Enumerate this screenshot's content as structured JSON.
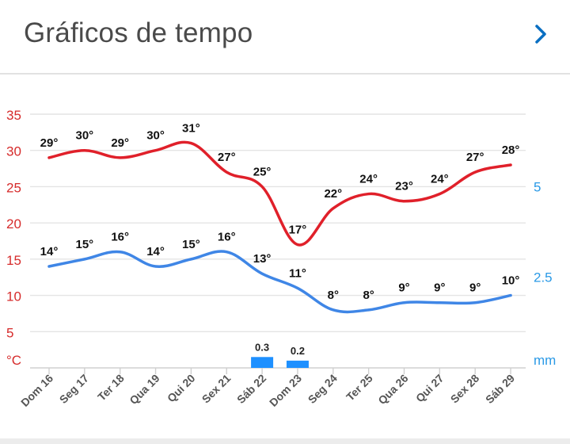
{
  "header": {
    "title": "Gráficos de tempo",
    "chevron_icon": "chevron-right-icon"
  },
  "colors": {
    "temp_max": "#e0202a",
    "temp_min": "#3f86e6",
    "precip": "#1e90ff",
    "grid": "#e4e4e4",
    "axis_left": "#d62b2b",
    "axis_right": "#2b9ae6"
  },
  "chart_data": {
    "type": "line",
    "categories": [
      "Dom 16",
      "Seg 17",
      "Ter 18",
      "Qua 19",
      "Qui 20",
      "Sex 21",
      "Sáb 22",
      "Dom 23",
      "Seg 24",
      "Ter 25",
      "Qua 26",
      "Qui 27",
      "Sex 28",
      "Sáb 29"
    ],
    "series": [
      {
        "values": [
          29,
          30,
          29,
          30,
          31,
          27,
          25,
          17,
          22,
          24,
          23,
          24,
          27,
          28
        ],
        "labels": [
          "29°",
          "30°",
          "29°",
          "30°",
          "31°",
          "27°",
          "25°",
          "17°",
          "22°",
          "24°",
          "23°",
          "24°",
          "27°",
          "28°"
        ],
        "axis": "left"
      },
      {
        "values": [
          14,
          15,
          16,
          14,
          15,
          16,
          13,
          11,
          8,
          8,
          9,
          9,
          9,
          10
        ],
        "labels": [
          "14°",
          "15°",
          "16°",
          "14°",
          "15°",
          "16°",
          "13°",
          "11°",
          "8°",
          "8°",
          "9°",
          "9°",
          "9°",
          "10°"
        ],
        "axis": "left"
      },
      {
        "type": "bar",
        "values": [
          0,
          0,
          0,
          0,
          0,
          0,
          0.3,
          0.2,
          0,
          0,
          0,
          0,
          0,
          0
        ],
        "labels": [
          "",
          "",
          "",
          "",
          "",
          "",
          "0.3",
          "0.2",
          "",
          "",
          "",
          "",
          "",
          ""
        ],
        "axis": "right"
      }
    ],
    "y_left": {
      "unit": "°C",
      "ylim": [
        0,
        35
      ],
      "ticks": [
        5,
        10,
        15,
        20,
        25,
        30,
        35
      ]
    },
    "y_right": {
      "unit": "mm",
      "ylim": [
        0,
        7
      ],
      "ticks": [
        "2.5",
        "5"
      ]
    },
    "grid": true
  }
}
